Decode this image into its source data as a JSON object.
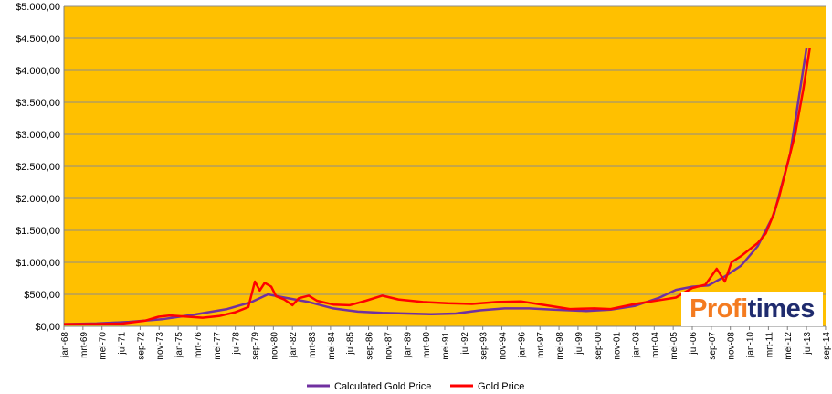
{
  "chart_data": {
    "type": "line",
    "title": "",
    "xlabel": "",
    "ylabel": "",
    "ylim": [
      0,
      5000
    ],
    "y_ticks": [
      "$0,00",
      "$500,00",
      "$1.000,00",
      "$1.500,00",
      "$2.000,00",
      "$2.500,00",
      "$3.000,00",
      "$3.500,00",
      "$4.000,00",
      "$4.500,00",
      "$5.000,00"
    ],
    "x_ticks": [
      "jan-68",
      "mrt-69",
      "mei-70",
      "jul-71",
      "sep-72",
      "nov-73",
      "jan-75",
      "mrt-76",
      "mei-77",
      "jul-78",
      "sep-79",
      "nov-80",
      "jan-82",
      "mrt-83",
      "mei-84",
      "jul-85",
      "sep-86",
      "nov-87",
      "jan-89",
      "mrt-90",
      "mei-91",
      "jul-92",
      "sep-93",
      "nov-94",
      "jan-96",
      "mrt-97",
      "mei-98",
      "jul-99",
      "sep-00",
      "nov-01",
      "jan-03",
      "mrt-04",
      "mei-05",
      "jul-06",
      "sep-07",
      "nov-08",
      "jan-10",
      "mrt-11",
      "mei-12",
      "jul-13",
      "sep-14"
    ],
    "plot_background": "#FFC000",
    "grid": true,
    "legend_position": "bottom",
    "series": [
      {
        "name": "Calculated Gold Price",
        "color": "#7030A0",
        "x": [
          1968.0,
          1970.0,
          1972.0,
          1974.0,
          1976.0,
          1978.0,
          1979.5,
          1980.5,
          1981.5,
          1983.0,
          1984.5,
          1986.0,
          1987.5,
          1989.0,
          1990.5,
          1992.0,
          1993.5,
          1995.0,
          1996.5,
          1998.0,
          2000.0,
          2001.5,
          2003.0,
          2004.5,
          2005.5,
          2006.5,
          2007.5,
          2008.5,
          2009.5,
          2010.5,
          2011.5,
          2012.5,
          2013.5
        ],
        "values": [
          35,
          45,
          70,
          110,
          185,
          270,
          380,
          500,
          450,
          380,
          280,
          230,
          210,
          200,
          190,
          200,
          250,
          280,
          280,
          260,
          240,
          260,
          320,
          450,
          570,
          620,
          640,
          780,
          950,
          1250,
          1750,
          2700,
          4350
        ]
      },
      {
        "name": "Gold Price",
        "color": "#FF0000",
        "x": [
          1968.0,
          1970.0,
          1971.5,
          1973.0,
          1973.8,
          1974.5,
          1976.5,
          1977.5,
          1978.5,
          1979.3,
          1979.7,
          1980.0,
          1980.3,
          1980.7,
          1981.0,
          1981.5,
          1982.0,
          1982.4,
          1983.0,
          1983.5,
          1984.5,
          1985.5,
          1986.5,
          1987.5,
          1988.5,
          1990.0,
          1991.5,
          1993.0,
          1994.5,
          1996.0,
          1997.5,
          1999.0,
          2000.5,
          2001.5,
          2003.0,
          2004.5,
          2005.5,
          2006.5,
          2007.3,
          2008.0,
          2008.5,
          2008.9,
          2009.5,
          2010.0,
          2010.5,
          2011.0,
          2011.4,
          2011.8,
          2012.3,
          2012.8,
          2013.3,
          2013.7
        ],
        "values": [
          35,
          36,
          42,
          90,
          150,
          170,
          135,
          160,
          220,
          300,
          700,
          560,
          680,
          620,
          470,
          420,
          330,
          440,
          480,
          400,
          340,
          330,
          400,
          480,
          420,
          380,
          360,
          350,
          380,
          390,
          330,
          270,
          280,
          270,
          350,
          410,
          450,
          600,
          650,
          900,
          700,
          1000,
          1100,
          1200,
          1300,
          1450,
          1700,
          2000,
          2500,
          3000,
          3700,
          4350
        ]
      }
    ]
  },
  "logo": {
    "part1": "Profi",
    "part2": "times"
  }
}
